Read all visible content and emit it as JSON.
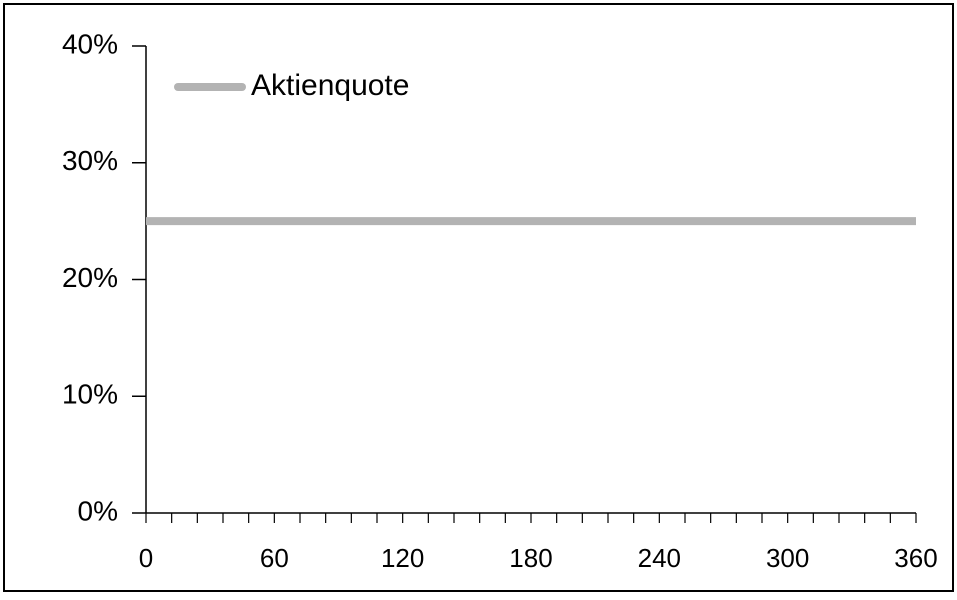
{
  "chart_data": {
    "type": "line",
    "title": "",
    "xlabel": "",
    "ylabel": "",
    "xlim": [
      0,
      360
    ],
    "ylim": [
      0,
      0.4
    ],
    "x_ticks": [
      0,
      60,
      120,
      180,
      240,
      300,
      360
    ],
    "x_tick_labels": [
      "0",
      "60",
      "120",
      "180",
      "240",
      "300",
      "360"
    ],
    "x_minor_step": 12,
    "y_ticks": [
      0,
      0.1,
      0.2,
      0.3,
      0.4
    ],
    "y_tick_labels": [
      "0%",
      "10%",
      "20%",
      "30%",
      "40%"
    ],
    "grid": false,
    "legend": {
      "position": "top-left"
    },
    "series": [
      {
        "name": "Aktienquote",
        "color": "#b3b3b3",
        "x": [
          0,
          360
        ],
        "y": [
          0.25,
          0.25
        ]
      }
    ]
  }
}
